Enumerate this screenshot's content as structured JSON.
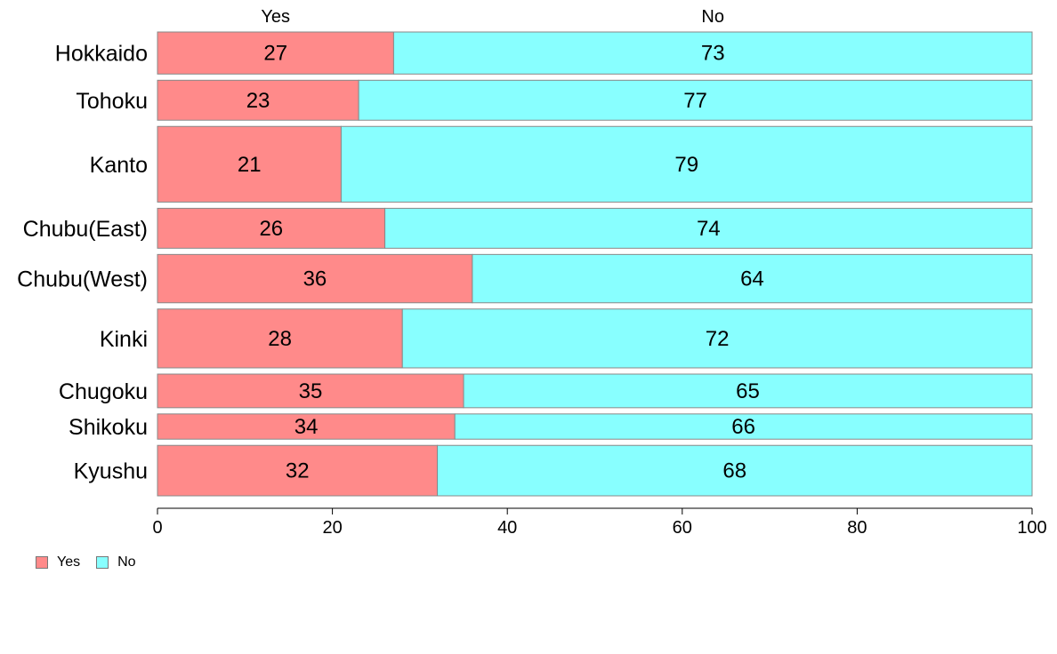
{
  "chart_data": {
    "type": "bar",
    "orientation": "horizontal",
    "stacked": true,
    "categories": [
      "Hokkaido",
      "Tohoku",
      "Kanto",
      "Chubu(East)",
      "Chubu(West)",
      "Kinki",
      "Chugoku",
      "Shikoku",
      "Kyushu"
    ],
    "series": [
      {
        "name": "Yes",
        "color": "#ff8a8a",
        "values": [
          27,
          23,
          21,
          26,
          36,
          28,
          35,
          34,
          32
        ]
      },
      {
        "name": "No",
        "color": "#88ffff",
        "values": [
          73,
          77,
          79,
          74,
          64,
          72,
          65,
          66,
          68
        ]
      }
    ],
    "bar_thickness_relative": [
      1.0,
      0.95,
      1.8,
      0.95,
      1.15,
      1.4,
      0.8,
      0.6,
      1.2
    ],
    "xlim": [
      0,
      100
    ],
    "xticks": [
      "0",
      "20",
      "40",
      "60",
      "80",
      "100"
    ],
    "grid": false,
    "legend": {
      "position": "bottom-left",
      "entries": [
        "Yes",
        "No"
      ]
    },
    "top_labels": [
      "Yes",
      "No"
    ],
    "xlabel": "",
    "ylabel": "",
    "title": ""
  }
}
